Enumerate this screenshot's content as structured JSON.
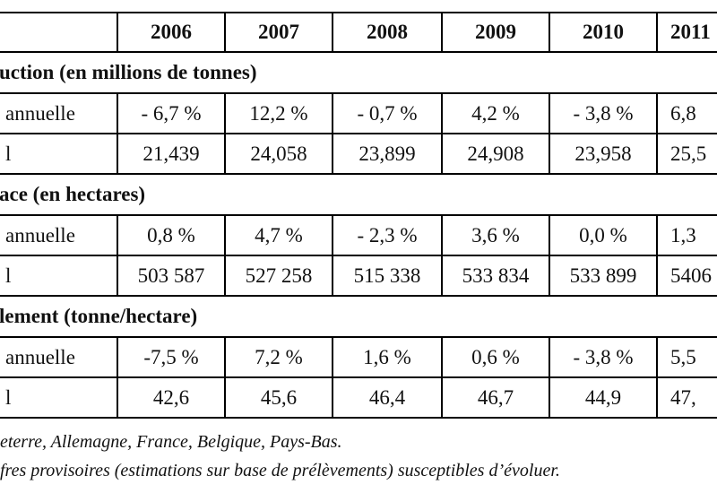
{
  "header": {
    "columns": [
      "2006",
      "2007",
      "2008",
      "2009",
      "2010",
      "2011"
    ]
  },
  "sections": [
    {
      "title": "uction (en millions de tonnes)",
      "rows": [
        {
          "label": "annuelle",
          "cells": [
            "- 6,7 %",
            "12,2 %",
            "- 0,7 %",
            "4,2 %",
            "- 3,8 %",
            "6,8"
          ]
        },
        {
          "label": "l",
          "cells": [
            "21,439",
            "24,058",
            "23,899",
            "24,908",
            "23,958",
            "25,5"
          ]
        }
      ]
    },
    {
      "title": "ace (en hectares)",
      "rows": [
        {
          "label": "annuelle",
          "cells": [
            "0,8 %",
            "4,7 %",
            "- 2,3 %",
            "3,6 %",
            "0,0 %",
            "1,3"
          ]
        },
        {
          "label": "l",
          "cells": [
            "503 587",
            "527 258",
            "515 338",
            "533 834",
            "533 899",
            "5406"
          ]
        }
      ]
    },
    {
      "title": "lement (tonne/hectare)",
      "rows": [
        {
          "label": "annuelle",
          "cells": [
            "-7,5 %",
            "7,2 %",
            "1,6 %",
            "0,6 %",
            "- 3,8 %",
            "5,5"
          ]
        },
        {
          "label": "l",
          "cells": [
            "42,6",
            "45,6",
            "46,4",
            "46,7",
            "44,9",
            "47,"
          ]
        }
      ]
    }
  ],
  "footnotes": [
    "eterre, Allemagne, France, Belgique, Pays-Bas.",
    "fres provisoires (estimations sur base de prélèvements) susceptibles d’évoluer."
  ]
}
